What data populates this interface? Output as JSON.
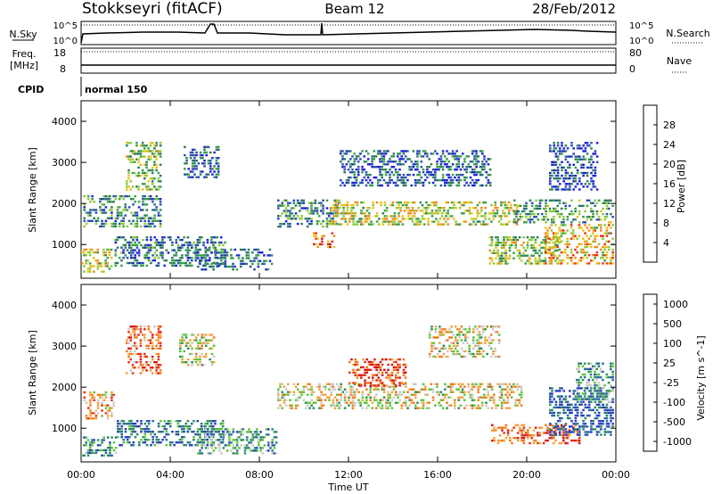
{
  "header": {
    "site": "Stokkseyri (fitACF)",
    "beam": "Beam 12",
    "date": "28/Feb/2012"
  },
  "nsky_panel": {
    "left_label": "N.Sky",
    "right_label": "N.Search",
    "ticks_left": [
      "10^5",
      "10^0"
    ],
    "ticks_right": [
      "10^5",
      "10^0"
    ]
  },
  "freq_panel": {
    "left_label": "Freq.",
    "unit_label": "[MHz]",
    "right_label": "Nave",
    "ticks_left": [
      "18",
      "8"
    ],
    "ticks_right": [
      "80",
      "0"
    ]
  },
  "cpid_panel": {
    "label": "CPID",
    "value": "normal 150"
  },
  "time_axis": {
    "label": "Time UT",
    "ticks": [
      "00:00",
      "04:00",
      "08:00",
      "12:00",
      "16:00",
      "20:00",
      "00:00"
    ]
  },
  "chart_data": [
    {
      "type": "heatmap",
      "name": "power",
      "xlabel": "Time UT",
      "ylabel": "Slant Range [km]",
      "xlim_hours": [
        0,
        24
      ],
      "ylim_km": [
        180,
        4500
      ],
      "y_ticks": [
        "1000",
        "2000",
        "3000",
        "4000"
      ],
      "colorbar": {
        "label": "Power [dB]",
        "ticks": [
          "4",
          "8",
          "12",
          "16",
          "20",
          "24",
          "28"
        ],
        "colors": [
          "#1f23d8",
          "#2e4fb8",
          "#2f7d5a",
          "#3aa04a",
          "#8fc93a",
          "#e6c21a",
          "#f08a1a",
          "#e4321d",
          "#c81414"
        ]
      },
      "regions": [
        {
          "t0": 0.0,
          "t1": 1.4,
          "r0": 300,
          "r1": 900,
          "v": 0.55
        },
        {
          "t0": 0.1,
          "t1": 3.6,
          "r0": 1400,
          "r1": 2200,
          "v": 0.3
        },
        {
          "t0": 2.0,
          "t1": 3.6,
          "r0": 2300,
          "r1": 3500,
          "v": 0.45
        },
        {
          "t0": 1.5,
          "t1": 6.5,
          "r0": 450,
          "r1": 1200,
          "v": 0.25
        },
        {
          "t0": 5.2,
          "t1": 8.6,
          "r0": 350,
          "r1": 900,
          "v": 0.22
        },
        {
          "t0": 4.6,
          "t1": 6.2,
          "r0": 2600,
          "r1": 3400,
          "v": 0.2
        },
        {
          "t0": 8.8,
          "t1": 11.6,
          "r0": 1400,
          "r1": 2100,
          "v": 0.3
        },
        {
          "t0": 10.4,
          "t1": 11.4,
          "r0": 900,
          "r1": 1300,
          "v": 0.75
        },
        {
          "t0": 11.2,
          "t1": 19.6,
          "r0": 1450,
          "r1": 2050,
          "v": 0.55
        },
        {
          "t0": 11.6,
          "t1": 18.4,
          "r0": 2400,
          "r1": 3300,
          "v": 0.2
        },
        {
          "t0": 18.3,
          "t1": 21.5,
          "r0": 500,
          "r1": 1200,
          "v": 0.5
        },
        {
          "t0": 19.4,
          "t1": 23.9,
          "r0": 1500,
          "r1": 2100,
          "v": 0.35
        },
        {
          "t0": 20.8,
          "t1": 23.9,
          "r0": 500,
          "r1": 1500,
          "v": 0.65
        },
        {
          "t0": 21.0,
          "t1": 23.2,
          "r0": 2300,
          "r1": 3500,
          "v": 0.15
        }
      ]
    },
    {
      "type": "heatmap",
      "name": "velocity",
      "xlabel": "Time UT",
      "ylabel": "Slant Range [km]",
      "xlim_hours": [
        0,
        24
      ],
      "ylim_km": [
        180,
        4500
      ],
      "y_ticks": [
        "1000",
        "2000",
        "3000",
        "4000"
      ],
      "colorbar": {
        "label": "Velocity [m s^-1]",
        "ticks": [
          "1000",
          "500",
          "100",
          "25",
          "-25",
          "-100",
          "-500",
          "-1000"
        ],
        "colors": [
          "#2a3fc4",
          "#2e6f9a",
          "#2e8f5a",
          "#5cc43a",
          "#c9c9c9",
          "#f0a23a",
          "#f07a1a",
          "#e4321d",
          "#d81414"
        ]
      },
      "regions": [
        {
          "t0": 0.0,
          "t1": 1.6,
          "r0": 300,
          "r1": 800,
          "v": 0.25
        },
        {
          "t0": 0.1,
          "t1": 1.5,
          "r0": 1200,
          "r1": 1900,
          "v": 0.65
        },
        {
          "t0": 2.0,
          "t1": 3.6,
          "r0": 2300,
          "r1": 3500,
          "v": 0.72
        },
        {
          "t0": 1.6,
          "t1": 6.4,
          "r0": 550,
          "r1": 1200,
          "v": 0.2
        },
        {
          "t0": 5.2,
          "t1": 8.8,
          "r0": 350,
          "r1": 1000,
          "v": 0.3
        },
        {
          "t0": 4.4,
          "t1": 6.0,
          "r0": 2500,
          "r1": 3300,
          "v": 0.48
        },
        {
          "t0": 8.8,
          "t1": 19.8,
          "r0": 1450,
          "r1": 2100,
          "v": 0.52
        },
        {
          "t0": 12.0,
          "t1": 14.6,
          "r0": 2000,
          "r1": 2700,
          "v": 0.85
        },
        {
          "t0": 15.6,
          "t1": 18.8,
          "r0": 2700,
          "r1": 3500,
          "v": 0.52
        },
        {
          "t0": 18.4,
          "t1": 22.4,
          "r0": 600,
          "r1": 1100,
          "v": 0.78
        },
        {
          "t0": 21.0,
          "t1": 23.9,
          "r0": 800,
          "r1": 2000,
          "v": 0.1
        },
        {
          "t0": 22.2,
          "t1": 23.9,
          "r0": 1600,
          "r1": 2600,
          "v": 0.3
        }
      ]
    }
  ]
}
